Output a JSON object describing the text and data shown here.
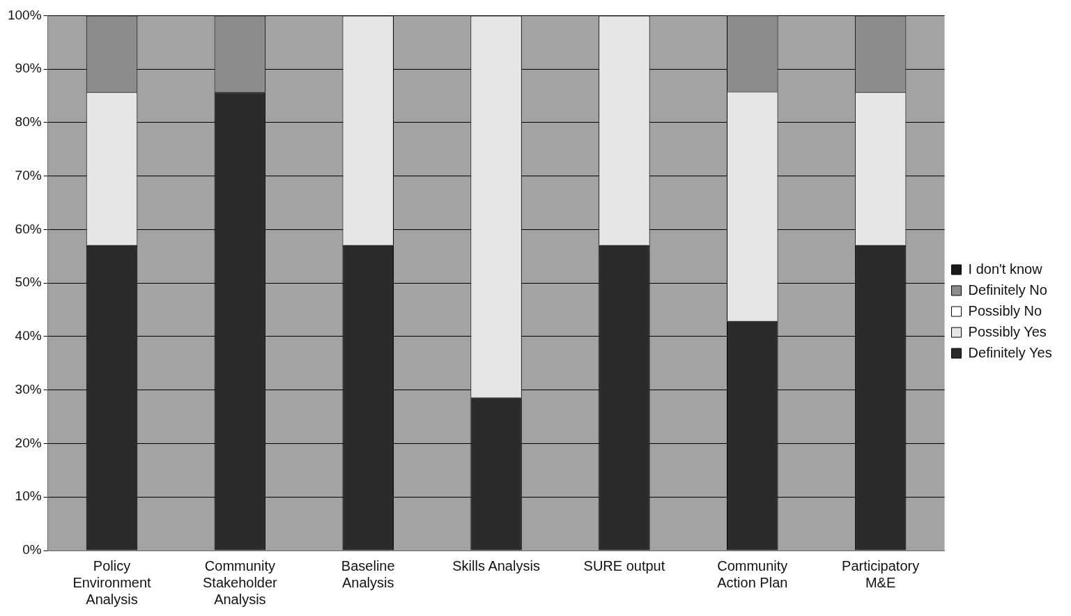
{
  "chart_data": {
    "type": "bar",
    "stacked": true,
    "categories": [
      "Policy Environment Analysis",
      "Community Stakeholder Analysis",
      "Baseline Analysis",
      "Skills Analysis",
      "SURE output",
      "Community Action Plan",
      "Participatory M&E"
    ],
    "series": [
      {
        "name": "Definitely Yes",
        "color": "#2b2b2b",
        "values": [
          57.1,
          85.7,
          57.1,
          28.6,
          57.1,
          42.9,
          57.1
        ]
      },
      {
        "name": "Possibly Yes",
        "color": "#e6e6e6",
        "values": [
          28.6,
          0,
          42.9,
          71.4,
          42.9,
          42.9,
          28.6
        ]
      },
      {
        "name": "Possibly No",
        "color": "#ffffff",
        "values": [
          0,
          0,
          0,
          0,
          0,
          0,
          0
        ]
      },
      {
        "name": "Definitely No",
        "color": "#8c8c8c",
        "values": [
          14.3,
          14.3,
          0,
          0,
          0,
          14.3,
          14.3
        ]
      },
      {
        "name": "I don't know",
        "color": "#1a1a1a",
        "values": [
          0,
          0,
          0,
          0,
          0,
          0,
          0
        ]
      }
    ],
    "ylim": [
      0,
      100
    ],
    "yticks": [
      {
        "value": 0,
        "label": "0%"
      },
      {
        "value": 10,
        "label": "10%"
      },
      {
        "value": 20,
        "label": "20%"
      },
      {
        "value": 30,
        "label": "30%"
      },
      {
        "value": 40,
        "label": "40%"
      },
      {
        "value": 50,
        "label": "50%"
      },
      {
        "value": 60,
        "label": "60%"
      },
      {
        "value": 70,
        "label": "70%"
      },
      {
        "value": 80,
        "label": "80%"
      },
      {
        "value": 90,
        "label": "90%"
      },
      {
        "value": 100,
        "label": "100%"
      }
    ],
    "grid": "y",
    "legend": "right"
  }
}
